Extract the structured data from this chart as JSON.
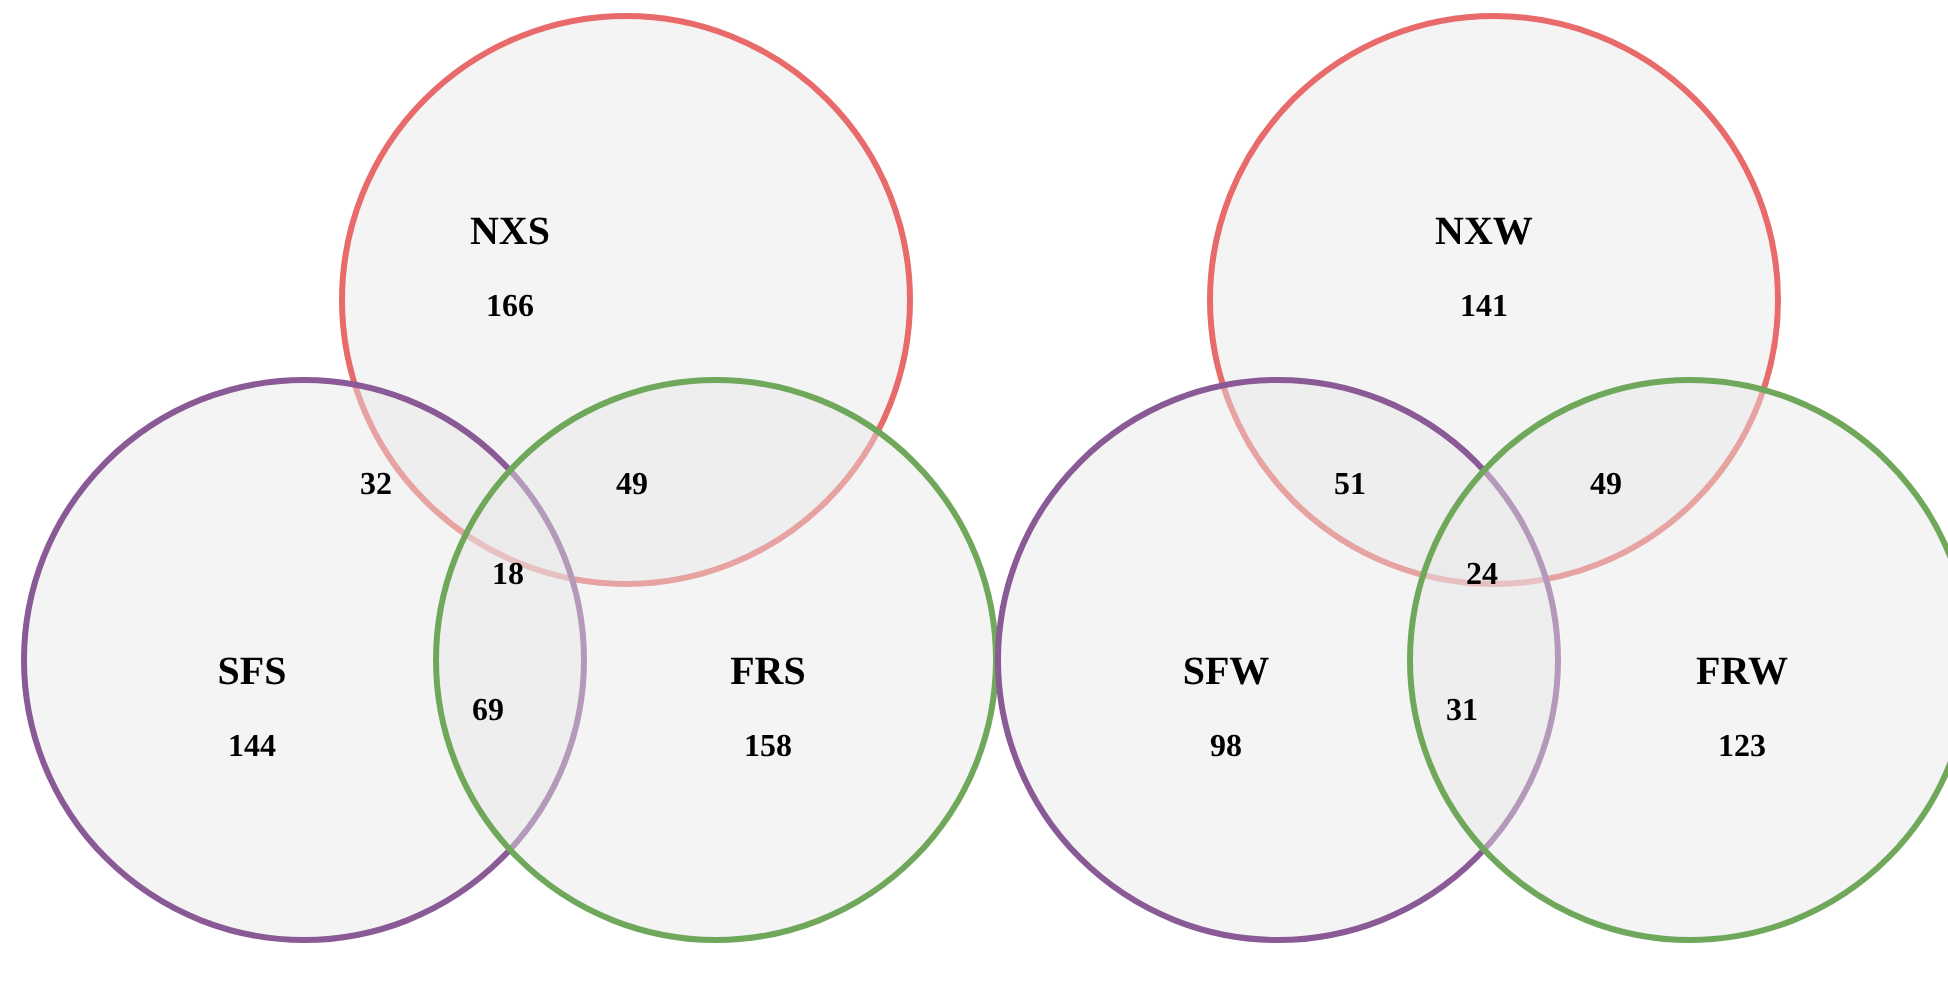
{
  "chart_data": [
    {
      "type": "other",
      "categories": [
        "NXS",
        "SFS",
        "FRS"
      ],
      "values": [
        166,
        144,
        158
      ],
      "colors": [
        "#e86a6a",
        "#8a5a96",
        "#6fa85a"
      ],
      "data_labels": true,
      "annotations": [
        "32",
        "49",
        "69",
        "18"
      ]
    },
    {
      "type": "other",
      "categories": [
        "NXW",
        "SFW",
        "FRW"
      ],
      "values": [
        141,
        98,
        123
      ],
      "colors": [
        "#e86a6a",
        "#8a5a96",
        "#6fa85a"
      ],
      "data_labels": true,
      "annotations": [
        "51",
        "49",
        "31",
        "24"
      ]
    }
  ]
}
